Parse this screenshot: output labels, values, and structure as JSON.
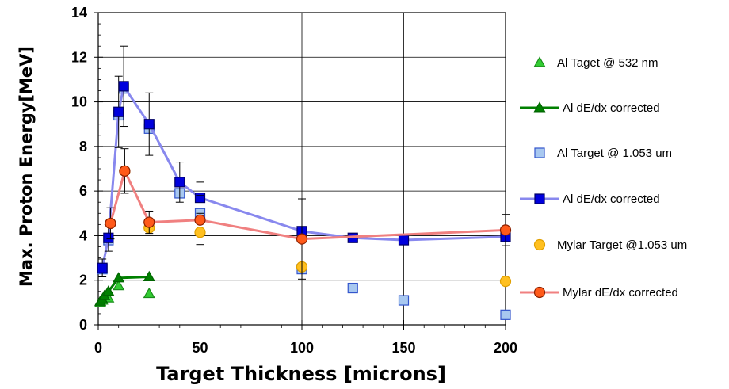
{
  "chart_data": {
    "type": "scatter",
    "xlabel": "Target Thickness [microns]",
    "ylabel": "Max. Proton Energy[MeV]",
    "xlim": [
      0,
      200
    ],
    "ylim": [
      0,
      14
    ],
    "xticks": [
      0,
      50,
      100,
      150,
      200
    ],
    "yticks": [
      0,
      2,
      4,
      6,
      8,
      10,
      12,
      14
    ],
    "grid": true,
    "legend_position": "right",
    "series": [
      {
        "name": "Al Taget @ 532 nm",
        "marker": "triangle",
        "line": false,
        "color": "#33cc33",
        "stroke": "#1a8c1a",
        "points": [
          {
            "x": 1,
            "y": 1.0
          },
          {
            "x": 2,
            "y": 1.1
          },
          {
            "x": 5,
            "y": 1.2
          },
          {
            "x": 10,
            "y": 1.75
          },
          {
            "x": 25,
            "y": 1.4
          }
        ]
      },
      {
        "name": "Al dE/dx corrected",
        "marker": "triangle",
        "line": true,
        "color": "#008000",
        "stroke": "#006400",
        "line_color": "#008000",
        "points": [
          {
            "x": 1,
            "y": 1.05
          },
          {
            "x": 2,
            "y": 1.15
          },
          {
            "x": 3,
            "y": 1.3
          },
          {
            "x": 5,
            "y": 1.5
          },
          {
            "x": 10,
            "y": 2.1
          },
          {
            "x": 25,
            "y": 2.15
          }
        ]
      },
      {
        "name": "Al Target @ 1.053 um",
        "marker": "square",
        "line": false,
        "color": "#a8c8f0",
        "stroke": "#3355cc",
        "points": [
          {
            "x": 2,
            "y": 2.5
          },
          {
            "x": 5,
            "y": 3.8
          },
          {
            "x": 10,
            "y": 9.4
          },
          {
            "x": 12.5,
            "y": 10.6
          },
          {
            "x": 25,
            "y": 8.8
          },
          {
            "x": 40,
            "y": 5.9
          },
          {
            "x": 50,
            "y": 5.0
          },
          {
            "x": 100,
            "y": 2.5
          },
          {
            "x": 125,
            "y": 1.65
          },
          {
            "x": 150,
            "y": 1.1
          },
          {
            "x": 200,
            "y": 0.45
          }
        ]
      },
      {
        "name": "Al dE/dx corrected",
        "marker": "square",
        "line": true,
        "color": "#0000dd",
        "stroke": "#000066",
        "line_color": "#8888ee",
        "points": [
          {
            "x": 2,
            "y": 2.55,
            "err": 0.4
          },
          {
            "x": 5,
            "y": 3.9,
            "err": 0.6
          },
          {
            "x": 10,
            "y": 9.55,
            "err": 1.6
          },
          {
            "x": 12.5,
            "y": 10.7,
            "err": 1.8
          },
          {
            "x": 25,
            "y": 9.0,
            "err": 1.4
          },
          {
            "x": 40,
            "y": 6.4,
            "err": 0.9
          },
          {
            "x": 50,
            "y": 5.7,
            "err": 0.7
          },
          {
            "x": 100,
            "y": 4.2
          },
          {
            "x": 125,
            "y": 3.9
          },
          {
            "x": 150,
            "y": 3.8
          },
          {
            "x": 200,
            "y": 3.95
          }
        ]
      },
      {
        "name": "Mylar Target @1.053 um",
        "marker": "circle",
        "line": false,
        "color": "#ffc020",
        "stroke": "#e0a000",
        "points": [
          {
            "x": 6,
            "y": 4.55
          },
          {
            "x": 13,
            "y": 6.9
          },
          {
            "x": 25,
            "y": 4.35
          },
          {
            "x": 50,
            "y": 4.15
          },
          {
            "x": 100,
            "y": 2.6
          },
          {
            "x": 200,
            "y": 1.95
          }
        ]
      },
      {
        "name": "Mylar dE/dx corrected",
        "marker": "circle",
        "line": true,
        "color": "#ff5a1a",
        "stroke": "#8b2000",
        "line_color": "#f08080",
        "points": [
          {
            "x": 6,
            "y": 4.55,
            "err": 0.7
          },
          {
            "x": 13,
            "y": 6.9,
            "err": 1.0
          },
          {
            "x": 25,
            "y": 4.6,
            "err": 0.5
          },
          {
            "x": 50,
            "y": 4.7,
            "err": 1.1
          },
          {
            "x": 100,
            "y": 3.85,
            "err": 1.8
          },
          {
            "x": 200,
            "y": 4.25,
            "err": 0.7
          }
        ]
      }
    ]
  }
}
